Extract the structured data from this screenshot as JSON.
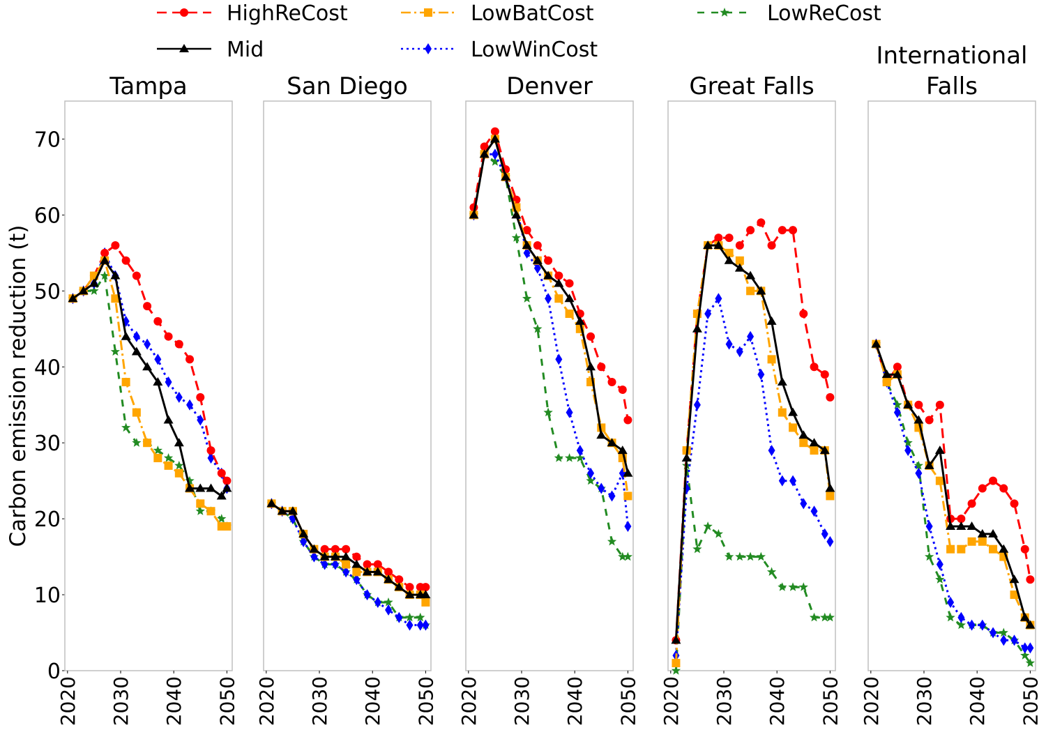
{
  "chart_data": {
    "type": "line",
    "ylabel": "Carbon emission reduction (t)",
    "ylim": [
      0,
      75
    ],
    "yticks": [
      0,
      10,
      20,
      30,
      40,
      50,
      60,
      70
    ],
    "xlim": [
      2019.5,
      2051
    ],
    "xticks": [
      2020,
      2030,
      2040,
      2050
    ],
    "x": [
      2021,
      2023,
      2025,
      2027,
      2029,
      2031,
      2033,
      2035,
      2037,
      2039,
      2041,
      2043,
      2045,
      2047,
      2049,
      2050
    ],
    "legend": [
      {
        "name": "HighReCost",
        "color": "#ff0000",
        "dash": "14,8",
        "marker": "circle"
      },
      {
        "name": "LowBatCost",
        "color": "#ffa500",
        "dash": "14,5,3,5",
        "marker": "square"
      },
      {
        "name": "LowReCost",
        "color": "#228b22",
        "dash": "10,10",
        "marker": "star"
      },
      {
        "name": "Mid",
        "color": "#000000",
        "dash": "",
        "marker": "triangle"
      },
      {
        "name": "LowWinCost",
        "color": "#0000ff",
        "dash": "3,5",
        "marker": "diamond"
      }
    ],
    "panels": [
      {
        "title": "Tampa",
        "series": {
          "HighReCost": [
            49,
            50,
            52,
            55,
            56,
            54,
            52,
            48,
            46,
            44,
            43,
            41,
            36,
            29,
            26,
            25
          ],
          "LowBatCost": [
            49,
            50,
            52,
            54,
            49,
            38,
            34,
            30,
            28,
            27,
            26,
            24,
            22,
            21,
            19,
            19
          ],
          "LowReCost": [
            49,
            50,
            50,
            52,
            42,
            32,
            30,
            30,
            29,
            28,
            27,
            25,
            21,
            21,
            20,
            19
          ],
          "Mid": [
            49,
            50,
            51,
            54,
            52,
            44,
            42,
            40,
            38,
            33,
            30,
            24,
            24,
            24,
            23,
            24
          ],
          "LowWinCost": [
            49,
            50,
            51,
            55,
            52,
            46,
            44,
            43,
            41,
            38,
            36,
            35,
            33,
            28,
            26,
            24
          ]
        }
      },
      {
        "title": "San Diego",
        "series": {
          "HighReCost": [
            22,
            21,
            21,
            18,
            16,
            16,
            16,
            16,
            15,
            14,
            14,
            13,
            12,
            11,
            11,
            11
          ],
          "LowBatCost": [
            22,
            21,
            21,
            18,
            16,
            15,
            15,
            14,
            13,
            13,
            13,
            12,
            11,
            10,
            10,
            9
          ],
          "LowReCost": [
            22,
            21,
            20,
            17,
            15,
            14,
            14,
            13,
            12,
            10,
            9,
            9,
            7,
            7,
            7,
            6
          ],
          "Mid": [
            22,
            21,
            21,
            18,
            16,
            15,
            15,
            15,
            14,
            13,
            13,
            12,
            11,
            10,
            10,
            10
          ],
          "LowWinCost": [
            22,
            21,
            20,
            17,
            15,
            14,
            14,
            13,
            12,
            10,
            9,
            8,
            7,
            6,
            6,
            6
          ]
        }
      },
      {
        "title": "Denver",
        "series": {
          "HighReCost": [
            61,
            69,
            71,
            66,
            62,
            58,
            56,
            54,
            52,
            51,
            47,
            44,
            40,
            38,
            37,
            33
          ],
          "LowBatCost": [
            60,
            68,
            70,
            65,
            61,
            56,
            54,
            52,
            49,
            47,
            45,
            38,
            32,
            30,
            28,
            23
          ],
          "LowReCost": [
            60,
            68,
            67,
            65,
            57,
            49,
            45,
            34,
            28,
            28,
            28,
            25,
            24,
            17,
            15,
            15
          ],
          "Mid": [
            60,
            68,
            70,
            65,
            60,
            56,
            54,
            52,
            51,
            49,
            46,
            40,
            31,
            30,
            29,
            26
          ],
          "LowWinCost": [
            60,
            68,
            68,
            65,
            61,
            55,
            53,
            49,
            41,
            34,
            29,
            26,
            24,
            23,
            26,
            19
          ]
        }
      },
      {
        "title": "Great Falls",
        "series": {
          "HighReCost": [
            4,
            29,
            47,
            56,
            57,
            57,
            56,
            58,
            59,
            56,
            58,
            58,
            47,
            40,
            39,
            36
          ],
          "LowBatCost": [
            1,
            29,
            47,
            56,
            56,
            55,
            54,
            50,
            50,
            41,
            34,
            32,
            30,
            29,
            29,
            23
          ],
          "LowReCost": [
            0,
            27,
            16,
            19,
            18,
            15,
            15,
            15,
            15,
            13,
            11,
            11,
            11,
            7,
            7,
            7
          ],
          "Mid": [
            4,
            28,
            45,
            56,
            56,
            54,
            53,
            52,
            50,
            46,
            38,
            34,
            31,
            30,
            29,
            24
          ],
          "LowWinCost": [
            2,
            24,
            35,
            47,
            49,
            43,
            42,
            44,
            39,
            29,
            25,
            25,
            22,
            21,
            18,
            17
          ]
        }
      },
      {
        "title": "International Falls",
        "series": {
          "HighReCost": [
            43,
            38,
            40,
            35,
            35,
            33,
            35,
            20,
            20,
            22,
            24,
            25,
            24,
            22,
            16,
            12
          ],
          "LowBatCost": [
            43,
            38,
            39,
            35,
            32,
            27,
            25,
            16,
            16,
            17,
            17,
            16,
            15,
            10,
            7,
            6
          ],
          "LowReCost": [
            43,
            38,
            35,
            30,
            27,
            15,
            12,
            7,
            6,
            6,
            6,
            5,
            5,
            4,
            2,
            1
          ],
          "Mid": [
            43,
            39,
            39,
            35,
            33,
            27,
            29,
            19,
            19,
            19,
            18,
            18,
            16,
            12,
            7,
            6
          ],
          "LowWinCost": [
            43,
            38,
            34,
            29,
            26,
            19,
            14,
            9,
            7,
            6,
            6,
            5,
            4,
            4,
            3,
            3
          ]
        }
      }
    ]
  }
}
